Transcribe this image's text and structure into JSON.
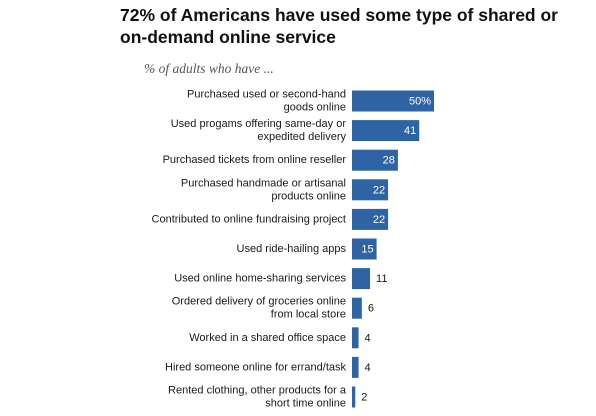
{
  "chart_data": {
    "type": "bar",
    "orientation": "horizontal",
    "title": "72% of Americans have used some type of shared or on-demand online service",
    "subtitle": "% of adults who have ...",
    "categories": [
      [
        "Purchased used or second-hand",
        "goods online"
      ],
      [
        "Used progams offering same-day or",
        "expedited delivery"
      ],
      [
        "Purchased tickets from online reseller"
      ],
      [
        "Purchased handmade or artisanal",
        "products online"
      ],
      [
        "Contributed to online fundraising project"
      ],
      [
        "Used ride-hailing apps"
      ],
      [
        "Used online home-sharing services"
      ],
      [
        "Ordered delivery of groceries online",
        "from local store"
      ],
      [
        "Worked in a shared office space"
      ],
      [
        "Hired someone online for errand/task"
      ],
      [
        "Rented clothing, other products for a",
        "short time online"
      ]
    ],
    "values": [
      50,
      41,
      28,
      22,
      22,
      15,
      11,
      6,
      4,
      4,
      2
    ],
    "value_labels": [
      "50%",
      "41",
      "28",
      "22",
      "22",
      "15",
      "11",
      "6",
      "4",
      "4",
      "2"
    ],
    "xlim": [
      0,
      50
    ],
    "bar_color": "#2e64a3",
    "grid": false,
    "legend": "none"
  }
}
